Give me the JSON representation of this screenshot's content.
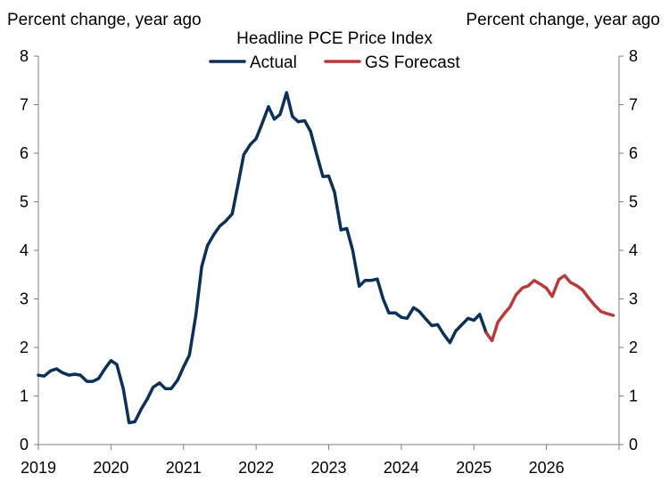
{
  "left_axis_caption": "Percent change, year ago",
  "right_axis_caption": "Percent change, year ago",
  "chart_data": {
    "type": "line",
    "title": "Headline PCE Price Index",
    "ylabel": "Percent change, year ago",
    "y2label": "Percent change, year ago",
    "ylim": [
      0,
      8
    ],
    "yticks": [
      "0",
      "1",
      "2",
      "3",
      "4",
      "5",
      "6",
      "7",
      "8"
    ],
    "xlim": [
      2019,
      2027
    ],
    "xticks": [
      "2019",
      "2020",
      "2021",
      "2022",
      "2023",
      "2024",
      "2025",
      "2026"
    ],
    "legend_position": "top-center",
    "series": [
      {
        "name": "Actual",
        "color": "#0b3158",
        "points": [
          [
            2019.0,
            1.43
          ],
          [
            2019.08,
            1.41
          ],
          [
            2019.17,
            1.52
          ],
          [
            2019.25,
            1.56
          ],
          [
            2019.33,
            1.48
          ],
          [
            2019.42,
            1.43
          ],
          [
            2019.5,
            1.45
          ],
          [
            2019.58,
            1.43
          ],
          [
            2019.67,
            1.3
          ],
          [
            2019.75,
            1.3
          ],
          [
            2019.83,
            1.36
          ],
          [
            2019.92,
            1.57
          ],
          [
            2020.0,
            1.73
          ],
          [
            2020.08,
            1.65
          ],
          [
            2020.17,
            1.15
          ],
          [
            2020.25,
            0.45
          ],
          [
            2020.33,
            0.47
          ],
          [
            2020.42,
            0.74
          ],
          [
            2020.5,
            0.94
          ],
          [
            2020.58,
            1.18
          ],
          [
            2020.67,
            1.27
          ],
          [
            2020.75,
            1.15
          ],
          [
            2020.83,
            1.15
          ],
          [
            2020.92,
            1.33
          ],
          [
            2021.0,
            1.6
          ],
          [
            2021.08,
            1.84
          ],
          [
            2021.17,
            2.67
          ],
          [
            2021.25,
            3.66
          ],
          [
            2021.33,
            4.1
          ],
          [
            2021.42,
            4.33
          ],
          [
            2021.5,
            4.5
          ],
          [
            2021.58,
            4.6
          ],
          [
            2021.67,
            4.75
          ],
          [
            2021.75,
            5.35
          ],
          [
            2021.83,
            5.97
          ],
          [
            2021.92,
            6.18
          ],
          [
            2022.0,
            6.3
          ],
          [
            2022.08,
            6.6
          ],
          [
            2022.17,
            6.96
          ],
          [
            2022.25,
            6.7
          ],
          [
            2022.33,
            6.8
          ],
          [
            2022.42,
            7.25
          ],
          [
            2022.5,
            6.76
          ],
          [
            2022.58,
            6.65
          ],
          [
            2022.67,
            6.67
          ],
          [
            2022.75,
            6.45
          ],
          [
            2022.83,
            6.0
          ],
          [
            2022.92,
            5.52
          ],
          [
            2023.0,
            5.53
          ],
          [
            2023.08,
            5.2
          ],
          [
            2023.17,
            4.42
          ],
          [
            2023.25,
            4.45
          ],
          [
            2023.33,
            4.0
          ],
          [
            2023.42,
            3.26
          ],
          [
            2023.5,
            3.38
          ],
          [
            2023.58,
            3.38
          ],
          [
            2023.67,
            3.41
          ],
          [
            2023.75,
            3.0
          ],
          [
            2023.83,
            2.71
          ],
          [
            2023.92,
            2.71
          ],
          [
            2024.0,
            2.62
          ],
          [
            2024.08,
            2.6
          ],
          [
            2024.17,
            2.82
          ],
          [
            2024.25,
            2.74
          ],
          [
            2024.33,
            2.6
          ],
          [
            2024.42,
            2.45
          ],
          [
            2024.5,
            2.47
          ],
          [
            2024.58,
            2.28
          ],
          [
            2024.67,
            2.1
          ],
          [
            2024.75,
            2.34
          ],
          [
            2024.83,
            2.46
          ],
          [
            2024.92,
            2.6
          ],
          [
            2025.0,
            2.56
          ],
          [
            2025.08,
            2.68
          ],
          [
            2025.17,
            2.3
          ]
        ]
      },
      {
        "name": "GS Forecast",
        "color": "#b83a3a",
        "points": [
          [
            2025.17,
            2.3
          ],
          [
            2025.25,
            2.14
          ],
          [
            2025.33,
            2.52
          ],
          [
            2025.42,
            2.7
          ],
          [
            2025.5,
            2.84
          ],
          [
            2025.58,
            3.08
          ],
          [
            2025.67,
            3.23
          ],
          [
            2025.75,
            3.27
          ],
          [
            2025.83,
            3.38
          ],
          [
            2025.92,
            3.3
          ],
          [
            2026.0,
            3.22
          ],
          [
            2026.08,
            3.05
          ],
          [
            2026.17,
            3.4
          ],
          [
            2026.25,
            3.48
          ],
          [
            2026.33,
            3.34
          ],
          [
            2026.42,
            3.27
          ],
          [
            2026.5,
            3.18
          ],
          [
            2026.58,
            3.02
          ],
          [
            2026.67,
            2.86
          ],
          [
            2026.75,
            2.74
          ],
          [
            2026.83,
            2.7
          ],
          [
            2026.92,
            2.66
          ]
        ]
      }
    ]
  }
}
